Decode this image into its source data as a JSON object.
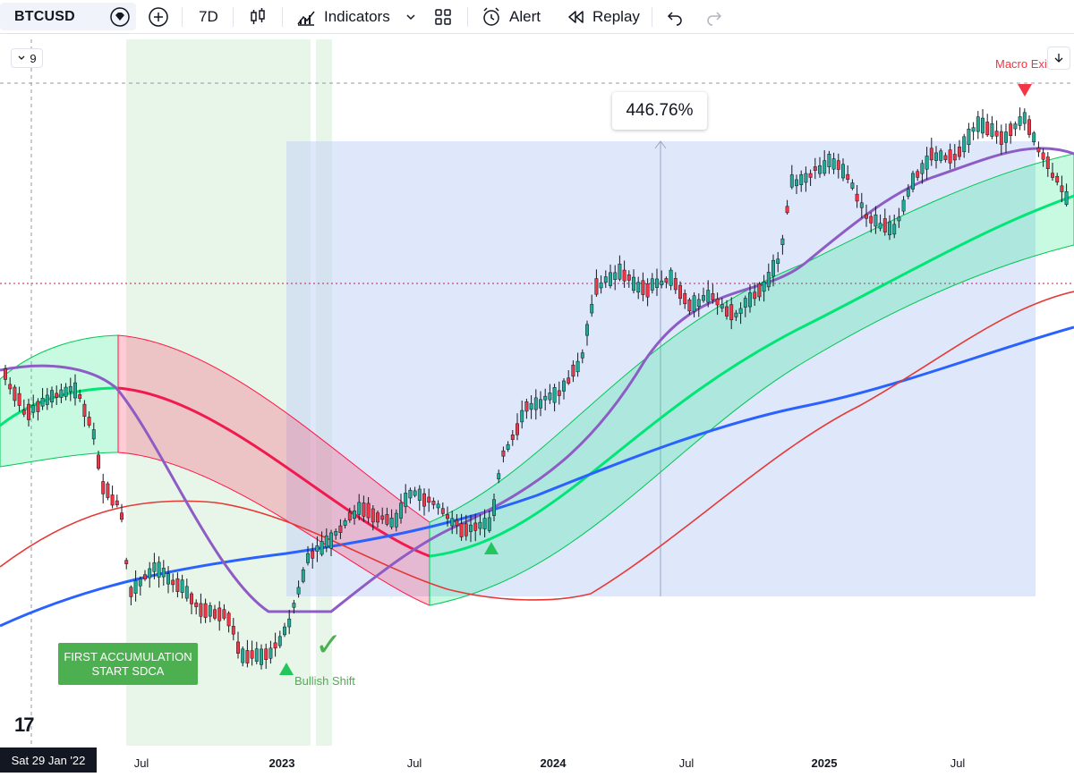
{
  "toolbar": {
    "symbol": "BTCUSD",
    "interval": "7D",
    "indicators_label": "Indicators",
    "alert_label": "Alert",
    "replay_label": "Replay"
  },
  "chart": {
    "legend_toggle": "9",
    "measure_percent": "446.76%",
    "accumulation_label_line1": "FIRST ACCUMULATION",
    "accumulation_label_line2": "START SDCA",
    "bullish_label": "Bullish Shift",
    "macro_label": "Macro Exi",
    "check_mark": "✓",
    "logo": "17"
  },
  "timeaxis": {
    "cursor_date": "Sat 29 Jan '22",
    "labels": [
      "Jul",
      "2023",
      "Jul",
      "2024",
      "Jul",
      "2025",
      "Jul"
    ]
  },
  "colors": {
    "up": "#22ab94",
    "down": "#f23645",
    "ma_purple": "#8e5cc5",
    "ma_blue": "#2962ff",
    "ma_red": "#e53935",
    "band_green": "#00e676",
    "band_red": "#ff1744"
  }
}
